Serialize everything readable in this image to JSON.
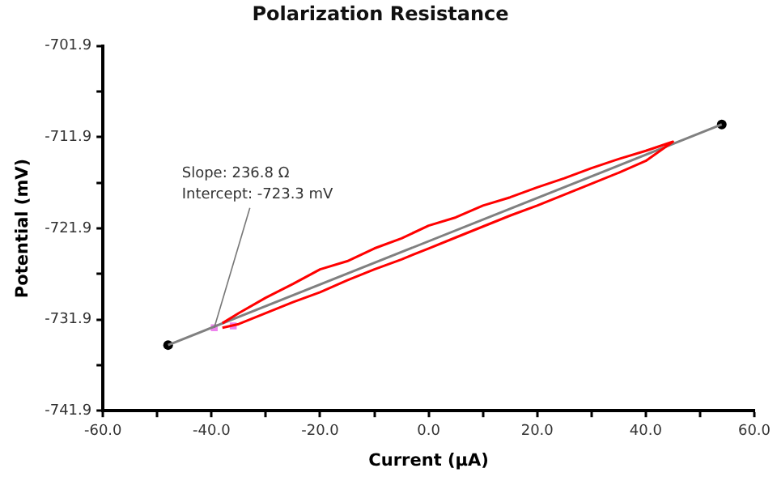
{
  "chart_data": {
    "type": "line",
    "title": "Polarization Resistance",
    "xlabel": "Current (µA)",
    "ylabel": "Potential (mV)",
    "xlim": [
      -60,
      60
    ],
    "xticks": [
      {
        "value": -60,
        "label": "-60.0"
      },
      {
        "value": -50,
        "label": null
      },
      {
        "value": -40,
        "label": "-40.0"
      },
      {
        "value": -30,
        "label": null
      },
      {
        "value": -20,
        "label": "-20.0"
      },
      {
        "value": -10,
        "label": null
      },
      {
        "value": 0,
        "label": "0.0"
      },
      {
        "value": 10,
        "label": null
      },
      {
        "value": 20,
        "label": "20.0"
      },
      {
        "value": 30,
        "label": null
      },
      {
        "value": 40,
        "label": "40.0"
      },
      {
        "value": 50,
        "label": null
      },
      {
        "value": 60,
        "label": "60.0"
      }
    ],
    "ylim": [
      -741.9,
      -701.9
    ],
    "yticks": [
      -741.9,
      {
        "value": -736.9,
        "label": null
      },
      -731.9,
      {
        "value": -726.9,
        "label": null
      },
      -721.9,
      {
        "value": -716.9,
        "label": null
      },
      -711.9,
      {
        "value": -706.9,
        "label": null
      },
      -701.9
    ],
    "grid": false,
    "legend": false,
    "series": [
      {
        "type": "line",
        "color": "#ff0000",
        "marker": "none",
        "x": [
          -38,
          -35,
          -30,
          -25,
          -20,
          -15,
          -10,
          -5,
          0,
          5,
          10,
          15,
          20,
          25,
          30,
          35,
          40,
          45,
          40,
          35,
          30,
          25,
          20,
          15,
          10,
          5,
          0,
          -5,
          -10,
          -15,
          -20,
          -25,
          -30,
          -35,
          -38
        ],
        "values": [
          -732.3,
          -731.2,
          -729.5,
          -728.0,
          -726.4,
          -725.5,
          -724.1,
          -723.0,
          -721.6,
          -720.7,
          -719.4,
          -718.5,
          -717.4,
          -716.4,
          -715.3,
          -714.3,
          -713.4,
          -712.4,
          -714.5,
          -715.8,
          -717.0,
          -718.2,
          -719.4,
          -720.5,
          -721.7,
          -722.9,
          -724.1,
          -725.3,
          -726.4,
          -727.6,
          -728.9,
          -730.0,
          -731.2,
          -732.4,
          -732.8
        ]
      },
      {
        "type": "line",
        "color": "#808080",
        "marker": "none",
        "x": [
          -48,
          54
        ],
        "values": [
          -734.7,
          -710.5
        ]
      },
      {
        "type": "scatter",
        "color": "#000000",
        "marker": "circle",
        "x": [
          -48,
          54
        ],
        "values": [
          -734.7,
          -710.5
        ]
      },
      {
        "type": "scatter",
        "color": "#ee82ee",
        "marker": "square",
        "x": [
          -39.5,
          -36
        ],
        "values": [
          -732.8,
          -732.6
        ]
      }
    ],
    "annotations": [
      "Slope: 236.8 Ω",
      {
        "text": "Intercept: -723.3 mV",
        "x": -39.5,
        "y": -732.8
      }
    ]
  }
}
